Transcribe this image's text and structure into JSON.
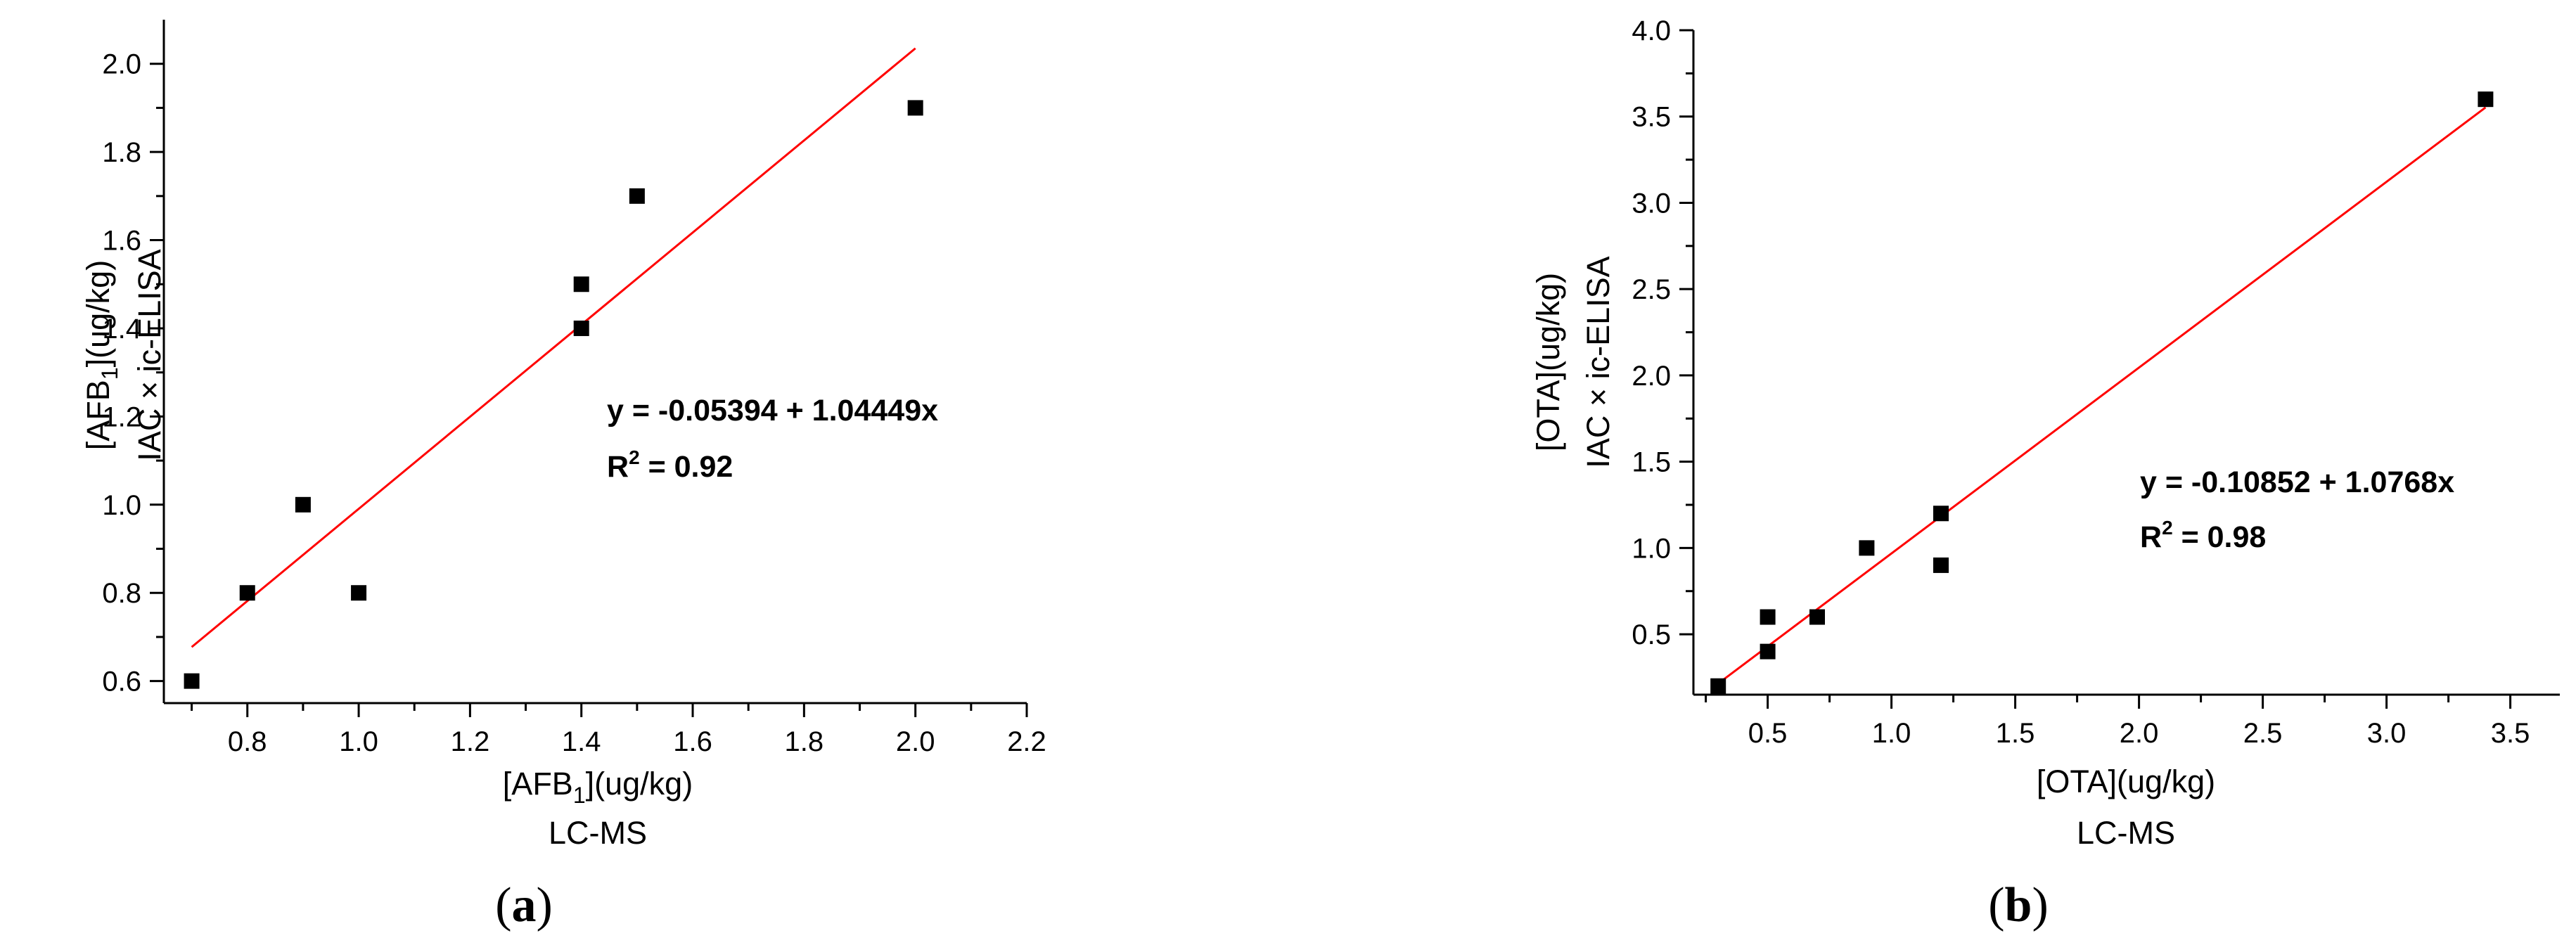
{
  "chart_data": [
    {
      "type": "scatter",
      "panel_label_parts": [
        "(",
        "a",
        ")"
      ],
      "x_axis_title": {
        "prefix": "[AFB",
        "sub": "1",
        "suffix": "](ug/kg)",
        "line2": "LC-MS"
      },
      "y_axis_title": {
        "prefix": "[AFB",
        "sub": "1",
        "suffix": "](ug/kg)",
        "line2": "IAC × ic-ELISA"
      },
      "xlim": [
        0.65,
        2.2
      ],
      "ylim": [
        0.55,
        2.1
      ],
      "x_ticks": [
        0.8,
        1.0,
        1.2,
        1.4,
        1.6,
        1.8,
        2.0,
        2.2
      ],
      "x_tick_labels": [
        "0.8",
        "1.0",
        "1.2",
        "1.4",
        "1.6",
        "1.8",
        "2.0",
        "2.2"
      ],
      "y_ticks": [
        0.6,
        0.8,
        1.0,
        1.2,
        1.4,
        1.6,
        1.8,
        2.0
      ],
      "y_tick_labels": [
        "0.6",
        "0.8",
        "1.0",
        "1.2",
        "1.4",
        "1.6",
        "1.8",
        "2.0"
      ],
      "points": [
        {
          "x": 0.7,
          "y": 0.6
        },
        {
          "x": 0.8,
          "y": 0.8
        },
        {
          "x": 0.9,
          "y": 1.0
        },
        {
          "x": 1.0,
          "y": 0.8
        },
        {
          "x": 1.4,
          "y": 1.4
        },
        {
          "x": 1.4,
          "y": 1.5
        },
        {
          "x": 1.5,
          "y": 1.7
        },
        {
          "x": 2.0,
          "y": 1.9
        }
      ],
      "fit": {
        "intercept": -0.05394,
        "slope": 1.04449,
        "x_range": [
          0.7,
          2.0
        ]
      },
      "equation": "y = -0.05394 + 1.04449x",
      "r2_prefix": "R",
      "r2_sup": "2",
      "r2_suffix": " = 0.92",
      "marker_color": "#000000",
      "fit_color": "#ff0000"
    },
    {
      "type": "scatter",
      "panel_label_parts": [
        "(",
        "b",
        ")"
      ],
      "x_axis_title": {
        "prefix": "[OTA](ug/kg)",
        "sub": "",
        "suffix": "",
        "line2": "LC-MS"
      },
      "y_axis_title": {
        "prefix": "[OTA](ug/kg)",
        "sub": "",
        "suffix": "",
        "line2": "IAC × ic-ELISA"
      },
      "xlim": [
        0.2,
        3.7
      ],
      "ylim": [
        0.15,
        4.0
      ],
      "x_ticks": [
        0.5,
        1.0,
        1.5,
        2.0,
        2.5,
        3.0,
        3.5
      ],
      "x_tick_labels": [
        "0.5",
        "1.0",
        "1.5",
        "2.0",
        "2.5",
        "3.0",
        "3.5"
      ],
      "y_ticks": [
        0.5,
        1.0,
        1.5,
        2.0,
        2.5,
        3.0,
        3.5,
        4.0
      ],
      "y_tick_labels": [
        "0.5",
        "1.0",
        "1.5",
        "2.0",
        "2.5",
        "3.0",
        "3.5",
        "4.0"
      ],
      "points": [
        {
          "x": 0.3,
          "y": 0.2
        },
        {
          "x": 0.5,
          "y": 0.4
        },
        {
          "x": 0.5,
          "y": 0.6
        },
        {
          "x": 0.7,
          "y": 0.6
        },
        {
          "x": 0.9,
          "y": 1.0
        },
        {
          "x": 1.2,
          "y": 0.9
        },
        {
          "x": 1.2,
          "y": 1.2
        },
        {
          "x": 3.4,
          "y": 3.6
        }
      ],
      "fit": {
        "intercept": -0.10852,
        "slope": 1.0768,
        "x_range": [
          0.3,
          3.4
        ]
      },
      "equation": "y = -0.10852 + 1.0768x",
      "r2_prefix": "R",
      "r2_sup": "2",
      "r2_suffix": " = 0.98",
      "marker_color": "#000000",
      "fit_color": "#ff0000"
    }
  ]
}
